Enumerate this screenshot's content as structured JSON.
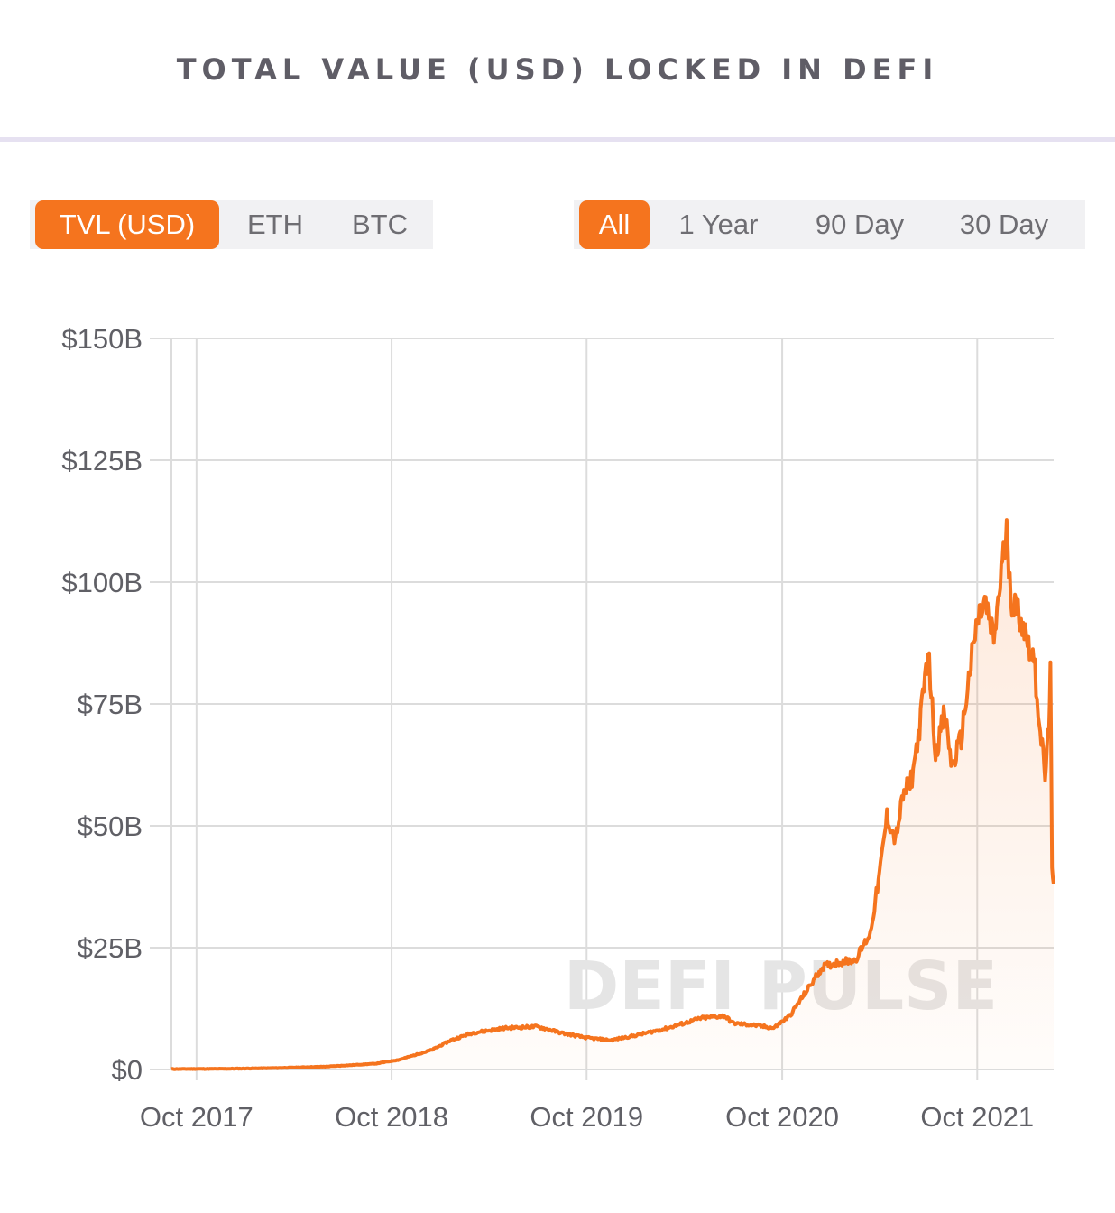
{
  "header": {
    "title": "TOTAL VALUE (USD) LOCKED IN DEFI"
  },
  "currency_toggle": [
    {
      "label": "TVL (USD)",
      "active": true
    },
    {
      "label": "ETH",
      "active": false
    },
    {
      "label": "BTC",
      "active": false
    }
  ],
  "range_toggle": [
    {
      "label": "All",
      "active": true
    },
    {
      "label": "1 Year",
      "active": false
    },
    {
      "label": "90 Day",
      "active": false
    },
    {
      "label": "30 Day",
      "active": false
    }
  ],
  "colors": {
    "accent": "#f5741e",
    "grid": "#dcdcdc",
    "text": "#606066"
  },
  "chart_data": {
    "type": "area",
    "title": "TOTAL VALUE (USD) LOCKED IN DEFI",
    "watermark": "DEFI PULSE",
    "x_ticks": [
      "Oct 2017",
      "Oct 2018",
      "Oct 2019",
      "Oct 2020",
      "Oct 2021"
    ],
    "y_ticks": [
      "$0",
      "$25B",
      "$50B",
      "$75B",
      "$100B",
      "$125B",
      "$150B"
    ],
    "y_tick_values": [
      0,
      25,
      50,
      75,
      100,
      125,
      150
    ],
    "ylim": [
      0,
      150
    ],
    "xlim": [
      "2017-08-15",
      "2022-02-21"
    ],
    "grid": true,
    "series": [
      {
        "values_in": "USD billions",
        "points": [
          [
            "2017-08-15",
            0.1
          ],
          [
            "2017-12-01",
            0.15
          ],
          [
            "2018-03-01",
            0.3
          ],
          [
            "2018-06-01",
            0.6
          ],
          [
            "2018-09-01",
            1.2
          ],
          [
            "2018-10-15",
            2.0
          ],
          [
            "2018-12-15",
            4.0
          ],
          [
            "2019-01-20",
            6.0
          ],
          [
            "2019-03-01",
            7.5
          ],
          [
            "2019-05-01",
            8.5
          ],
          [
            "2019-07-01",
            8.8
          ],
          [
            "2019-08-15",
            7.5
          ],
          [
            "2019-10-01",
            6.5
          ],
          [
            "2019-11-15",
            6.0
          ],
          [
            "2020-01-01",
            7.0
          ],
          [
            "2020-03-01",
            8.5
          ],
          [
            "2020-05-01",
            10.5
          ],
          [
            "2020-06-15",
            11.0
          ],
          [
            "2020-07-01",
            9.5
          ],
          [
            "2020-08-15",
            9.0
          ],
          [
            "2020-09-15",
            8.5
          ],
          [
            "2020-10-15",
            11.0
          ],
          [
            "2020-11-15",
            16.0
          ],
          [
            "2020-12-15",
            21.0
          ],
          [
            "2021-01-15",
            22.0
          ],
          [
            "2021-02-15",
            22.5
          ],
          [
            "2021-03-15",
            28.0
          ],
          [
            "2021-04-01",
            40.0
          ],
          [
            "2021-04-15",
            52.0
          ],
          [
            "2021-05-01",
            47.0
          ],
          [
            "2021-05-15",
            56.0
          ],
          [
            "2021-06-01",
            60.0
          ],
          [
            "2021-06-15",
            70.0
          ],
          [
            "2021-07-01",
            86.0
          ],
          [
            "2021-07-15",
            65.0
          ],
          [
            "2021-08-01",
            73.0
          ],
          [
            "2021-08-15",
            62.0
          ],
          [
            "2021-09-01",
            68.0
          ],
          [
            "2021-09-15",
            80.0
          ],
          [
            "2021-10-01",
            92.0
          ],
          [
            "2021-10-15",
            96.0
          ],
          [
            "2021-11-01",
            88.0
          ],
          [
            "2021-11-15",
            102.0
          ],
          [
            "2021-11-25",
            110.0
          ],
          [
            "2021-12-05",
            96.0
          ],
          [
            "2021-12-20",
            93.0
          ],
          [
            "2022-01-01",
            89.0
          ],
          [
            "2022-01-15",
            84.0
          ],
          [
            "2022-01-25",
            72.0
          ],
          [
            "2022-02-05",
            60.0
          ],
          [
            "2022-02-12",
            70.0
          ],
          [
            "2022-02-15",
            85.0
          ],
          [
            "2022-02-18",
            40.0
          ],
          [
            "2022-02-21",
            38.0
          ]
        ]
      }
    ]
  }
}
